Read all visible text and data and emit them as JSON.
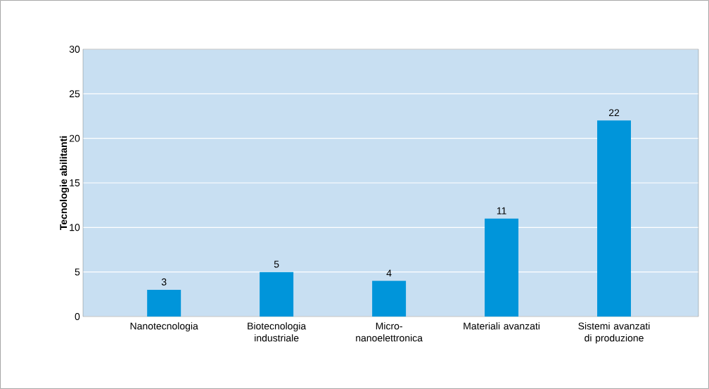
{
  "chart_data": {
    "type": "bar",
    "ylabel": "Tecnologie abilitanti",
    "categories": [
      "Nanotecnologia",
      "Biotecnologia industriale",
      "Micro-nanoelettronica",
      "Materiali avanzati",
      "Sistemi avanzati di produzione"
    ],
    "values": [
      3,
      5,
      4,
      11,
      22
    ],
    "color": "#0095da",
    "ylim": [
      0,
      30
    ],
    "yticks": [
      0,
      5,
      10,
      15,
      20,
      25,
      30
    ],
    "grid": "y",
    "data_labels": true
  }
}
